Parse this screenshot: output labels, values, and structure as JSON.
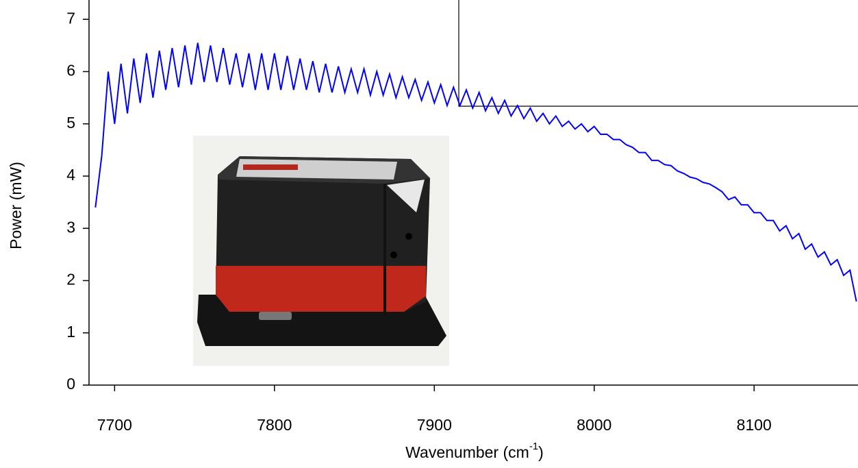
{
  "chart_data": {
    "type": "line",
    "x_label": "Wavenumber (cm",
    "x_label_sup": "-1",
    "x_label_end": ")",
    "y_label": "Power (mW)",
    "color": "#0000ff",
    "xlim": [
      7684,
      8165
    ],
    "ylim": [
      0,
      7.37
    ],
    "xticks": [
      7700,
      7800,
      7900,
      8000,
      8100
    ],
    "yticks": [
      0,
      1,
      2,
      3,
      4,
      5,
      6,
      7
    ],
    "x": [
      7688,
      7692,
      7696,
      7700,
      7704,
      7708,
      7712,
      7716,
      7720,
      7724,
      7728,
      7732,
      7736,
      7740,
      7744,
      7748,
      7752,
      7756,
      7760,
      7764,
      7768,
      7772,
      7776,
      7780,
      7784,
      7788,
      7792,
      7796,
      7800,
      7804,
      7808,
      7812,
      7816,
      7820,
      7824,
      7828,
      7832,
      7836,
      7840,
      7844,
      7848,
      7852,
      7856,
      7860,
      7864,
      7868,
      7872,
      7876,
      7880,
      7884,
      7888,
      7892,
      7896,
      7900,
      7904,
      7908,
      7912,
      7916,
      7920,
      7924,
      7928,
      7932,
      7936,
      7940,
      7944,
      7948,
      7952,
      7956,
      7960,
      7964,
      7968,
      7972,
      7976,
      7980,
      7984,
      7988,
      7992,
      7996,
      8000,
      8004,
      8008,
      8012,
      8016,
      8020,
      8024,
      8028,
      8032,
      8036,
      8040,
      8044,
      8048,
      8052,
      8056,
      8060,
      8064,
      8068,
      8072,
      8076,
      8080,
      8084,
      8088,
      8092,
      8096,
      8100,
      8104,
      8108,
      8112,
      8116,
      8120,
      8124,
      8128,
      8132,
      8136,
      8140,
      8144,
      8148,
      8152,
      8156,
      8160,
      8164
    ],
    "values": [
      3.4,
      4.4,
      6.0,
      5.0,
      6.15,
      5.2,
      6.25,
      5.4,
      6.35,
      5.5,
      6.4,
      5.65,
      6.45,
      5.7,
      6.5,
      5.75,
      6.55,
      5.8,
      6.5,
      5.8,
      6.45,
      5.75,
      6.35,
      5.7,
      6.35,
      5.65,
      6.35,
      5.65,
      6.35,
      5.65,
      6.3,
      5.65,
      6.25,
      5.65,
      6.2,
      5.6,
      6.15,
      5.6,
      6.1,
      5.6,
      6.05,
      5.6,
      6.05,
      5.55,
      6.0,
      5.55,
      5.95,
      5.5,
      5.9,
      5.5,
      5.85,
      5.45,
      5.8,
      5.4,
      5.75,
      5.35,
      5.7,
      5.35,
      5.65,
      5.3,
      5.6,
      5.25,
      5.5,
      5.2,
      5.45,
      5.15,
      5.35,
      5.1,
      5.3,
      5.05,
      5.2,
      5.0,
      5.15,
      4.95,
      5.05,
      4.9,
      5.0,
      4.85,
      4.95,
      4.8,
      4.8,
      4.7,
      4.7,
      4.6,
      4.55,
      4.45,
      4.45,
      4.3,
      4.3,
      4.22,
      4.2,
      4.1,
      4.05,
      3.98,
      3.95,
      3.88,
      3.85,
      3.78,
      3.7,
      3.55,
      3.6,
      3.45,
      3.45,
      3.3,
      3.3,
      3.15,
      3.15,
      2.95,
      3.05,
      2.8,
      2.9,
      2.6,
      2.7,
      2.45,
      2.55,
      2.3,
      2.4,
      2.1,
      2.2,
      1.6
    ]
  }
}
